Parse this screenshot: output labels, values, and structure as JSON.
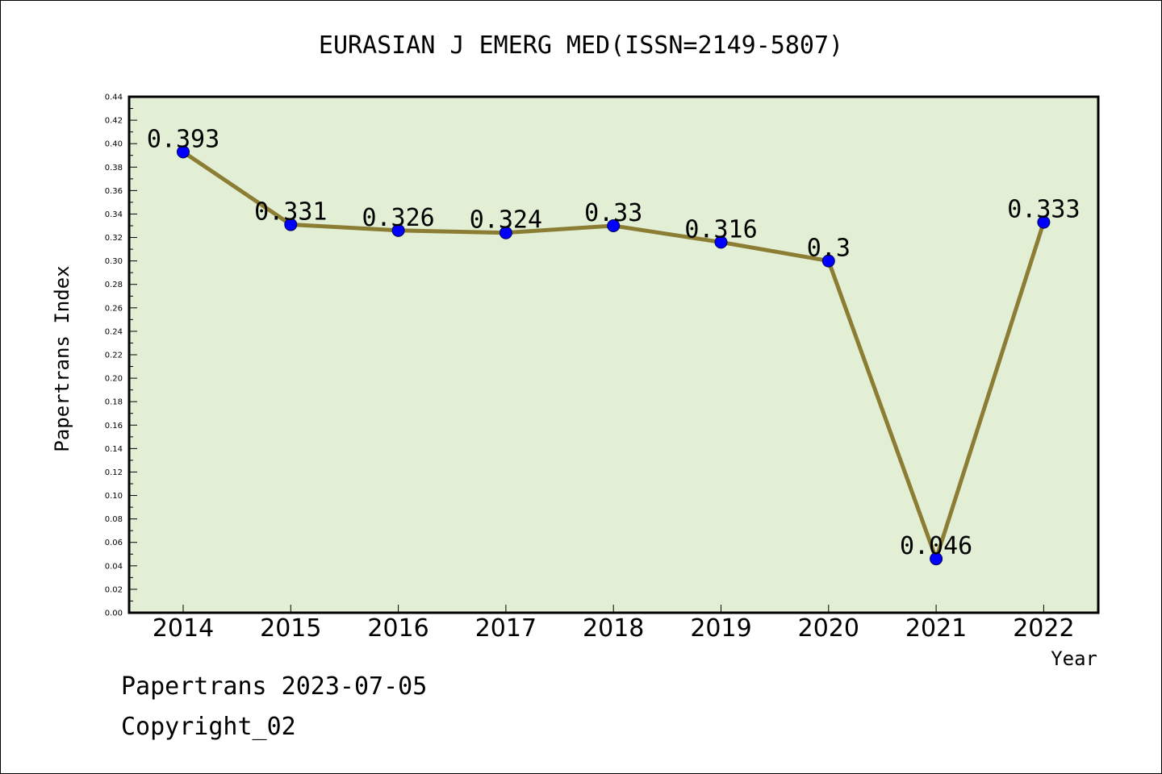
{
  "chart_data": {
    "type": "line",
    "title": "EURASIAN J EMERG MED(ISSN=2149-5807)",
    "xlabel": "Year",
    "ylabel": "Papertrans Index",
    "categories": [
      "2014",
      "2015",
      "2016",
      "2017",
      "2018",
      "2019",
      "2020",
      "2021",
      "2022"
    ],
    "values": [
      0.393,
      0.331,
      0.326,
      0.324,
      0.33,
      0.316,
      0.3,
      0.046,
      0.333
    ],
    "value_labels": [
      "0.393",
      "0.331",
      "0.326",
      "0.324",
      "0.33",
      "0.316",
      "0.3",
      "0.046",
      "0.333"
    ],
    "ylim": [
      0,
      0.44
    ],
    "yticks": [
      "0.00",
      "0.02",
      "0.04",
      "0.06",
      "0.08",
      "0.10",
      "0.12",
      "0.14",
      "0.16",
      "0.18",
      "0.20",
      "0.22",
      "0.24",
      "0.26",
      "0.28",
      "0.30",
      "0.32",
      "0.34",
      "0.36",
      "0.38",
      "0.40",
      "0.42",
      "0.44"
    ],
    "grid": false,
    "colors": {
      "plot_background": "#e2efd5",
      "line": "#8b7d33",
      "marker": "#0000ff"
    }
  },
  "footer": {
    "stamp": "Papertrans 2023-07-05",
    "copyright": "Copyright_02"
  }
}
